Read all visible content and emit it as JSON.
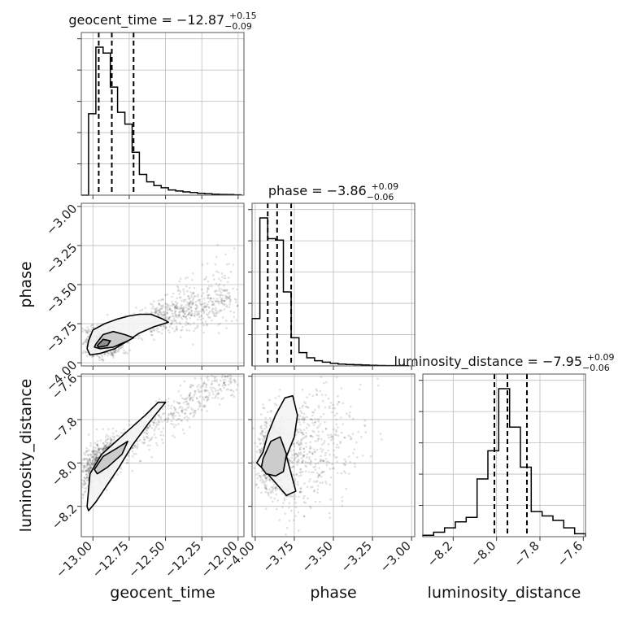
{
  "chart_data": {
    "type": "corner",
    "parameters": [
      "geocent_time",
      "phase",
      "luminosity_distance"
    ],
    "titles": [
      {
        "name": "geocent_time",
        "median": "−12.87",
        "plus": "+0.15",
        "minus": "−0.09"
      },
      {
        "name": "phase",
        "median": "−3.86",
        "plus": "+0.09",
        "minus": "−0.06"
      },
      {
        "name": "luminosity_distance",
        "median": "−7.95",
        "plus": "+0.09",
        "minus": "−0.06"
      }
    ],
    "axis_labels": {
      "x": [
        "geocent_time",
        "phase",
        "luminosity_distance"
      ],
      "y": [
        "phase",
        "luminosity_distance"
      ]
    },
    "ranges": {
      "geocent_time": [
        -13.08,
        -11.96
      ],
      "phase": [
        -4.02,
        -2.98
      ],
      "luminosity_distance": [
        -8.34,
        -7.59
      ]
    },
    "ticks": {
      "geocent_time": [
        {
          "v": -13.0,
          "label": "−13.00"
        },
        {
          "v": -12.75,
          "label": "−12.75"
        },
        {
          "v": -12.5,
          "label": "−12.50"
        },
        {
          "v": -12.25,
          "label": "−12.25"
        },
        {
          "v": -12.0,
          "label": "−12.00"
        }
      ],
      "phase": [
        {
          "v": -4.0,
          "label": "−4.00"
        },
        {
          "v": -3.75,
          "label": "−3.75"
        },
        {
          "v": -3.5,
          "label": "−3.50"
        },
        {
          "v": -3.25,
          "label": "−3.25"
        },
        {
          "v": -3.0,
          "label": "−3.00"
        }
      ],
      "phase_y": [
        {
          "v": -3.0,
          "label": "−3.00"
        },
        {
          "v": -3.25,
          "label": "−3.25"
        },
        {
          "v": -3.5,
          "label": "−3.50"
        },
        {
          "v": -3.75,
          "label": "−3.75"
        },
        {
          "v": -4.0,
          "label": "−4.00"
        }
      ],
      "luminosity_distance": [
        {
          "v": -8.2,
          "label": "−8.2"
        },
        {
          "v": -8.0,
          "label": "−8.0"
        },
        {
          "v": -7.8,
          "label": "−7.8"
        },
        {
          "v": -7.6,
          "label": "−7.6"
        }
      ]
    },
    "histograms": {
      "geocent_time": {
        "edges": [
          -13.08,
          -13.03,
          -12.98,
          -12.93,
          -12.88,
          -12.83,
          -12.78,
          -12.73,
          -12.68,
          -12.63,
          -12.58,
          -12.53,
          -12.48,
          -12.43,
          -12.38,
          -12.33,
          -12.28,
          -12.23,
          -12.18,
          -12.13,
          -12.08,
          -12.03,
          -11.98
        ],
        "counts": [
          0,
          550,
          1000,
          960,
          730,
          560,
          480,
          290,
          140,
          90,
          65,
          50,
          35,
          28,
          22,
          18,
          12,
          10,
          6,
          5,
          4,
          2
        ]
      },
      "phase": {
        "edges": [
          -4.02,
          -3.97,
          -3.92,
          -3.87,
          -3.82,
          -3.77,
          -3.72,
          -3.67,
          -3.62,
          -3.57,
          -3.52,
          -3.47,
          -3.42,
          -3.37,
          -3.32,
          -3.27,
          -3.22,
          -3.17,
          -3.12,
          -3.07,
          -3.02
        ],
        "counts": [
          320,
          1000,
          860,
          850,
          500,
          190,
          90,
          55,
          35,
          25,
          18,
          12,
          10,
          8,
          6,
          4,
          3,
          2,
          2,
          1
        ]
      },
      "luminosity_distance": {
        "edges": [
          -8.34,
          -8.29,
          -8.24,
          -8.19,
          -8.14,
          -8.09,
          -8.04,
          -7.99,
          -7.94,
          -7.89,
          -7.84,
          -7.79,
          -7.74,
          -7.69,
          -7.64,
          -7.59
        ],
        "counts": [
          10,
          30,
          60,
          100,
          130,
          390,
          580,
          1000,
          740,
          470,
          170,
          140,
          110,
          60,
          20
        ]
      }
    },
    "quantile_lines": {
      "geocent_time": [
        -12.96,
        -12.87,
        -12.72
      ],
      "phase": [
        -3.92,
        -3.86,
        -3.77
      ],
      "luminosity_distance": [
        -8.01,
        -7.95,
        -7.86
      ]
    },
    "contours": {
      "phase_vs_geocent_time": [
        {
          "x": [
            -13.03,
            -13.0,
            -12.92,
            -12.83,
            -12.75,
            -12.68,
            -12.6,
            -12.52,
            -12.48,
            -12.58,
            -12.68,
            -12.76,
            -12.85,
            -12.95,
            -13.02,
            -13.04
          ],
          "y": [
            -3.86,
            -3.79,
            -3.75,
            -3.72,
            -3.7,
            -3.69,
            -3.69,
            -3.72,
            -3.74,
            -3.77,
            -3.81,
            -3.86,
            -3.91,
            -3.94,
            -3.95,
            -3.91
          ]
        },
        {
          "x": [
            -12.98,
            -12.93,
            -12.86,
            -12.78,
            -12.72,
            -12.76,
            -12.86,
            -12.95,
            -12.99
          ],
          "y": [
            -3.88,
            -3.82,
            -3.8,
            -3.82,
            -3.84,
            -3.86,
            -3.9,
            -3.91,
            -3.9
          ]
        },
        {
          "x": [
            -12.97,
            -12.93,
            -12.88,
            -12.9,
            -12.96
          ],
          "y": [
            -3.89,
            -3.85,
            -3.86,
            -3.89,
            -3.9
          ]
        }
      ],
      "luminosity_distance_vs_geocent_time": [
        {
          "x": [
            -13.04,
            -13.02,
            -12.94,
            -12.84,
            -12.74,
            -12.64,
            -12.55,
            -12.5,
            -12.62,
            -12.73,
            -12.82,
            -12.9,
            -12.98,
            -13.03
          ],
          "y": [
            -8.2,
            -8.05,
            -7.96,
            -7.9,
            -7.84,
            -7.78,
            -7.72,
            -7.72,
            -7.82,
            -7.92,
            -8.02,
            -8.1,
            -8.18,
            -8.22
          ]
        },
        {
          "x": [
            -12.99,
            -12.93,
            -12.83,
            -12.76,
            -12.8,
            -12.9,
            -12.97
          ],
          "y": [
            -8.03,
            -7.97,
            -7.93,
            -7.9,
            -7.96,
            -8.02,
            -8.05
          ]
        }
      ],
      "luminosity_distance_vs_phase": [
        {
          "x": [
            -3.95,
            -3.92,
            -3.87,
            -3.81,
            -3.76,
            -3.73,
            -3.75,
            -3.8,
            -3.77,
            -3.74,
            -3.8,
            -3.86,
            -3.92,
            -3.96,
            -3.99
          ],
          "y": [
            -7.95,
            -7.87,
            -7.78,
            -7.7,
            -7.69,
            -7.78,
            -7.88,
            -7.97,
            -8.05,
            -8.13,
            -8.15,
            -8.1,
            -8.05,
            -8.02,
            -8.0
          ]
        },
        {
          "x": [
            -3.95,
            -3.9,
            -3.84,
            -3.8,
            -3.82,
            -3.87,
            -3.93,
            -3.96
          ],
          "y": [
            -7.98,
            -7.9,
            -7.88,
            -7.96,
            -8.04,
            -8.06,
            -8.05,
            -8.02
          ]
        }
      ]
    },
    "point_clouds": [
      {
        "pair": "phase_vs_geocent_time",
        "seed": 7,
        "count": 1300
      },
      {
        "pair": "luminosity_distance_vs_geocent_time",
        "seed": 13,
        "count": 1300
      },
      {
        "pair": "luminosity_distance_vs_phase",
        "seed": 21,
        "count": 1300
      }
    ],
    "grid": true
  }
}
